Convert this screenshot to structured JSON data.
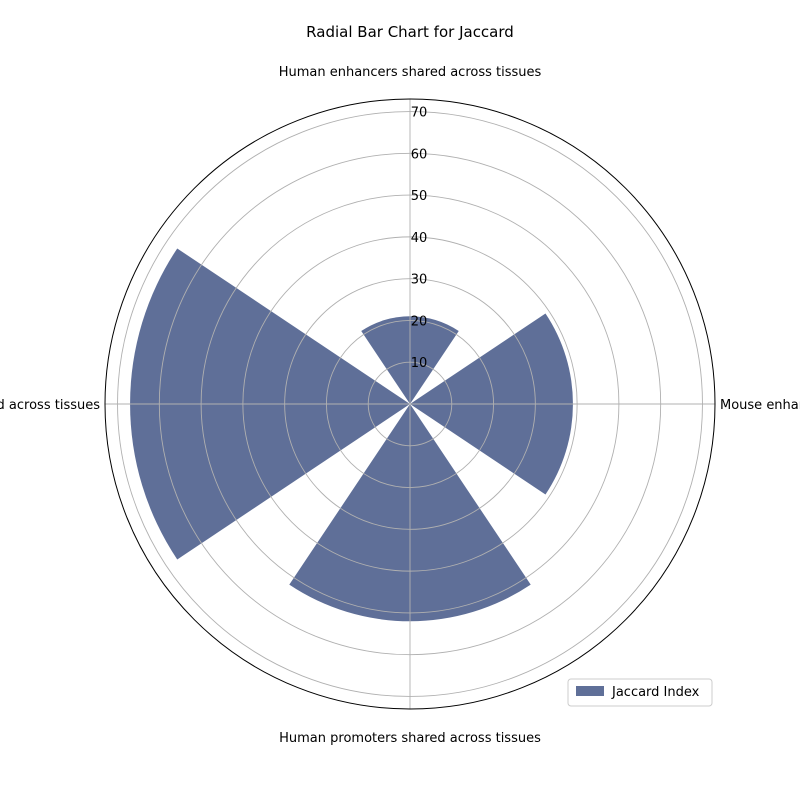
{
  "chart_data": {
    "type": "bar",
    "subtype": "radial",
    "title": "Radial Bar Chart for Jaccard",
    "categories": [
      "Human enhancers shared across tissues",
      "Mouse enhancers shared across tissues",
      "Human promoters shared across tissues",
      "Mouse promoters shared across tissues"
    ],
    "series": [
      {
        "name": "Jaccard Index",
        "values": [
          21,
          39,
          52,
          67
        ],
        "color": "#5f6f98"
      }
    ],
    "rlim": [
      0,
      73
    ],
    "rticks": [
      10,
      20,
      30,
      40,
      50,
      60,
      70
    ],
    "rtick_labels": [
      "10",
      "20",
      "30",
      "40",
      "50",
      "60",
      "70"
    ],
    "grid": true,
    "legend_position": "bottom-right"
  }
}
